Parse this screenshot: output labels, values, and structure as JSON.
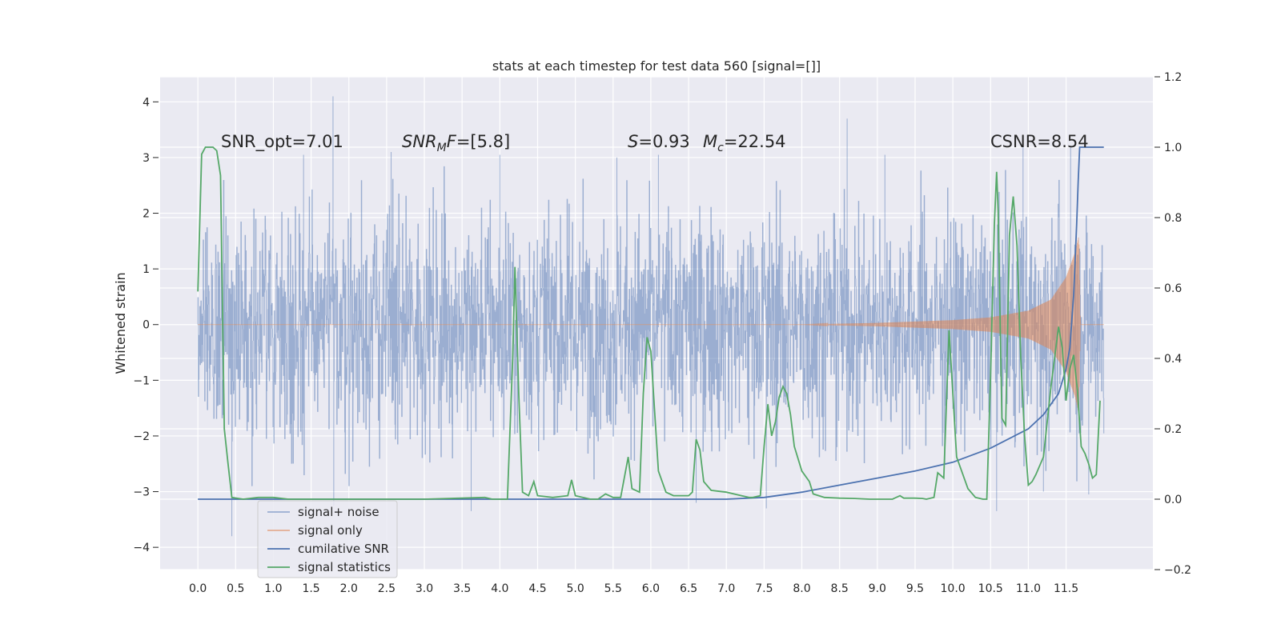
{
  "chart_data": {
    "type": "line",
    "title": "stats at each timestep for test data 560 [signal=[]]",
    "ylabel": "Whitened strain",
    "xlabel": "",
    "xlim": [
      -0.5,
      12.65
    ],
    "ylim": [
      -4.4,
      4.45
    ],
    "y2lim": [
      -0.2,
      1.2
    ],
    "grid": true,
    "legend_position": "lower-left",
    "x_ticks": [
      "0.0",
      "0.5",
      "1.0",
      "1.5",
      "2.0",
      "2.5",
      "3.0",
      "3.5",
      "4.0",
      "4.5",
      "5.0",
      "5.5",
      "6.0",
      "6.5",
      "7.0",
      "7.5",
      "8.0",
      "8.5",
      "9.0",
      "9.5",
      "10.0",
      "10.5",
      "11.0",
      "11.5"
    ],
    "y_ticks": [
      "4",
      "3",
      "2",
      "1",
      "0",
      "−1",
      "−2",
      "−3",
      "−4"
    ],
    "y2_ticks": [
      "1.2",
      "1.0",
      "0.8",
      "0.6",
      "0.4",
      "0.2",
      "0.0",
      "−0.2"
    ],
    "annotations": {
      "snr_opt": "SNR_opt=7.01",
      "snr_mf_label": "SNR",
      "snr_mf_sub": "M",
      "snr_mf_italic": "F",
      "snr_mf_value": "=[5.8]",
      "s_label": "S",
      "s_value": "=0.93",
      "mc_label": "M",
      "mc_sub": "c",
      "mc_value": "=22.54",
      "csnr": "CSNR=8.54"
    },
    "series": [
      {
        "name": "signal+ noise",
        "color": "#4c72b0",
        "opacity": 0.5,
        "x_range": [
          0.0,
          12.0
        ],
        "envelope_typical": 1.6,
        "peaks": [
          {
            "x": 1.79,
            "y": 4.1
          },
          {
            "x": 8.6,
            "y": 3.7
          },
          {
            "x": 11.56,
            "y": 3.2
          },
          {
            "x": 2.56,
            "y": 3.1
          },
          {
            "x": 1.4,
            "y": 3.05
          },
          {
            "x": 4.0,
            "y": 3.05
          },
          {
            "x": 5.55,
            "y": 3.0
          },
          {
            "x": 6.1,
            "y": 3.05
          },
          {
            "x": 9.1,
            "y": 3.05
          },
          {
            "x": 10.93,
            "y": 3.3
          },
          {
            "x": 0.45,
            "y": -3.8
          },
          {
            "x": 3.62,
            "y": -3.35
          },
          {
            "x": 10.58,
            "y": -3.35
          },
          {
            "x": 7.53,
            "y": -3.3
          },
          {
            "x": 1.8,
            "y": -3.25
          },
          {
            "x": 11.2,
            "y": -3.0
          },
          {
            "x": 6.6,
            "y": -3.2
          },
          {
            "x": 11.8,
            "y": -3.05
          }
        ]
      },
      {
        "name": "signal only",
        "color": "#dd8452",
        "amplitude_points": [
          [
            0.0,
            0.0
          ],
          [
            8.0,
            0.0
          ],
          [
            9.0,
            0.03
          ],
          [
            10.0,
            0.08
          ],
          [
            10.5,
            0.13
          ],
          [
            11.0,
            0.25
          ],
          [
            11.3,
            0.45
          ],
          [
            11.5,
            0.85
          ],
          [
            11.62,
            1.3
          ],
          [
            11.67,
            1.6
          ],
          [
            11.69,
            0.0
          ],
          [
            12.0,
            0.0
          ]
        ]
      },
      {
        "name": "cumilative SNR",
        "color": "#4c72b0",
        "axis": "right",
        "points": [
          [
            0.0,
            0.0
          ],
          [
            7.0,
            0.0
          ],
          [
            7.5,
            0.005
          ],
          [
            8.0,
            0.02
          ],
          [
            8.5,
            0.04
          ],
          [
            9.0,
            0.06
          ],
          [
            9.5,
            0.08
          ],
          [
            10.0,
            0.105
          ],
          [
            10.5,
            0.145
          ],
          [
            11.0,
            0.2
          ],
          [
            11.2,
            0.24
          ],
          [
            11.4,
            0.3
          ],
          [
            11.5,
            0.37
          ],
          [
            11.55,
            0.43
          ],
          [
            11.6,
            0.58
          ],
          [
            11.64,
            0.78
          ],
          [
            11.66,
            0.9
          ],
          [
            11.68,
            1.0
          ],
          [
            12.0,
            1.0
          ]
        ]
      },
      {
        "name": "signal statistics",
        "color": "#55a868",
        "axis": "right",
        "points": [
          [
            0.0,
            0.59
          ],
          [
            0.05,
            0.98
          ],
          [
            0.1,
            1.0
          ],
          [
            0.2,
            1.0
          ],
          [
            0.25,
            0.99
          ],
          [
            0.3,
            0.92
          ],
          [
            0.35,
            0.2
          ],
          [
            0.4,
            0.1
          ],
          [
            0.45,
            0.005
          ],
          [
            0.6,
            0.0
          ],
          [
            0.8,
            0.005
          ],
          [
            1.0,
            0.005
          ],
          [
            1.2,
            0.0
          ],
          [
            2.0,
            0.0
          ],
          [
            3.0,
            0.0
          ],
          [
            3.8,
            0.005
          ],
          [
            3.9,
            0.0
          ],
          [
            4.1,
            0.0
          ],
          [
            4.17,
            0.4
          ],
          [
            4.2,
            0.66
          ],
          [
            4.25,
            0.3
          ],
          [
            4.3,
            0.02
          ],
          [
            4.38,
            0.01
          ],
          [
            4.45,
            0.05
          ],
          [
            4.5,
            0.01
          ],
          [
            4.7,
            0.005
          ],
          [
            4.9,
            0.01
          ],
          [
            4.95,
            0.055
          ],
          [
            5.0,
            0.01
          ],
          [
            5.2,
            0.0
          ],
          [
            5.3,
            0.0
          ],
          [
            5.4,
            0.015
          ],
          [
            5.5,
            0.005
          ],
          [
            5.6,
            0.005
          ],
          [
            5.7,
            0.12
          ],
          [
            5.75,
            0.03
          ],
          [
            5.85,
            0.02
          ],
          [
            5.9,
            0.3
          ],
          [
            5.95,
            0.46
          ],
          [
            6.0,
            0.42
          ],
          [
            6.05,
            0.25
          ],
          [
            6.1,
            0.08
          ],
          [
            6.2,
            0.02
          ],
          [
            6.3,
            0.01
          ],
          [
            6.4,
            0.01
          ],
          [
            6.5,
            0.01
          ],
          [
            6.55,
            0.02
          ],
          [
            6.6,
            0.17
          ],
          [
            6.65,
            0.14
          ],
          [
            6.7,
            0.05
          ],
          [
            6.8,
            0.025
          ],
          [
            7.0,
            0.02
          ],
          [
            7.2,
            0.01
          ],
          [
            7.3,
            0.005
          ],
          [
            7.35,
            0.005
          ],
          [
            7.45,
            0.01
          ],
          [
            7.5,
            0.15
          ],
          [
            7.55,
            0.27
          ],
          [
            7.6,
            0.18
          ],
          [
            7.65,
            0.22
          ],
          [
            7.7,
            0.29
          ],
          [
            7.75,
            0.32
          ],
          [
            7.8,
            0.3
          ],
          [
            7.85,
            0.24
          ],
          [
            7.9,
            0.15
          ],
          [
            8.0,
            0.08
          ],
          [
            8.1,
            0.05
          ],
          [
            8.15,
            0.015
          ],
          [
            8.3,
            0.005
          ],
          [
            8.5,
            0.003
          ],
          [
            8.7,
            0.002
          ],
          [
            8.9,
            0.0
          ],
          [
            9.2,
            0.0
          ],
          [
            9.3,
            0.01
          ],
          [
            9.35,
            0.003
          ],
          [
            9.5,
            0.003
          ],
          [
            9.6,
            0.002
          ],
          [
            9.65,
            0.0
          ],
          [
            9.75,
            0.005
          ],
          [
            9.8,
            0.075
          ],
          [
            9.88,
            0.06
          ],
          [
            9.95,
            0.48
          ],
          [
            10.0,
            0.3
          ],
          [
            10.05,
            0.12
          ],
          [
            10.1,
            0.09
          ],
          [
            10.2,
            0.03
          ],
          [
            10.3,
            0.005
          ],
          [
            10.4,
            0.0
          ],
          [
            10.45,
            0.0
          ],
          [
            10.5,
            0.35
          ],
          [
            10.55,
            0.78
          ],
          [
            10.58,
            0.93
          ],
          [
            10.6,
            0.82
          ],
          [
            10.65,
            0.23
          ],
          [
            10.7,
            0.21
          ],
          [
            10.75,
            0.75
          ],
          [
            10.8,
            0.86
          ],
          [
            10.85,
            0.72
          ],
          [
            10.9,
            0.4
          ],
          [
            10.95,
            0.18
          ],
          [
            11.0,
            0.04
          ],
          [
            11.05,
            0.05
          ],
          [
            11.1,
            0.07
          ],
          [
            11.2,
            0.12
          ],
          [
            11.3,
            0.32
          ],
          [
            11.4,
            0.49
          ],
          [
            11.45,
            0.43
          ],
          [
            11.5,
            0.28
          ],
          [
            11.55,
            0.37
          ],
          [
            11.6,
            0.41
          ],
          [
            11.65,
            0.31
          ],
          [
            11.7,
            0.15
          ],
          [
            11.75,
            0.13
          ],
          [
            11.8,
            0.1
          ],
          [
            11.85,
            0.06
          ],
          [
            11.9,
            0.07
          ],
          [
            11.95,
            0.28
          ]
        ]
      }
    ]
  }
}
